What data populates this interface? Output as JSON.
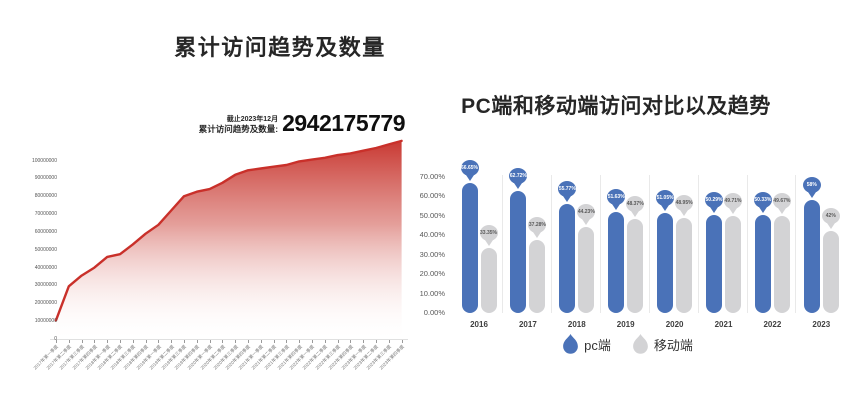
{
  "page": {
    "background": "#ffffff"
  },
  "chart_data": [
    {
      "type": "area",
      "title": "累计访问趋势及数量",
      "annotation": {
        "caption": "截止2023年12月",
        "label": "累计访问趋势及数量:",
        "total": "2942175779"
      },
      "x": [
        "2017年第一季度",
        "2017年第二季度",
        "2017年第三季度",
        "2017年第四季度",
        "2018年第一季度",
        "2018年第二季度",
        "2018年第三季度",
        "2018年第四季度",
        "2019年第一季度",
        "2019年第二季度",
        "2019年第三季度",
        "2019年第四季度",
        "2020年第一季度",
        "2020年第二季度",
        "2020年第三季度",
        "2020年第四季度",
        "2021年第一季度",
        "2021年第二季度",
        "2021年第三季度",
        "2021年第四季度",
        "2022年第一季度",
        "2022年第二季度",
        "2022年第三季度",
        "2022年第四季度",
        "2023年第一季度",
        "2023年第二季度",
        "2023年第三季度",
        "2023年第四季度"
      ],
      "values": [
        10500000,
        29500000,
        35500000,
        40000000,
        46000000,
        47500000,
        53000000,
        59000000,
        64000000,
        72000000,
        80000000,
        82500000,
        84000000,
        87500000,
        92000000,
        94500000,
        95500000,
        96500000,
        97500000,
        99500000,
        100500000,
        101500000,
        103000000,
        104000000,
        105500000,
        107000000,
        109000000,
        111000000
      ],
      "y_ticks": [
        "100000000",
        "90000000",
        "80000000",
        "70000000",
        "60000000",
        "50000000",
        "40000000",
        "30000000",
        "20000000",
        "10000000",
        "0"
      ],
      "ylim": [
        0,
        111000000
      ],
      "grid": false,
      "line_color": "#C9302A",
      "fill_gradient_top": "#C62F28",
      "fill_gradient_bottom": "#FFFFFF"
    },
    {
      "type": "bar",
      "title": "PC端和移动端访问对比以及趋势",
      "categories": [
        "2016",
        "2017",
        "2018",
        "2019",
        "2020",
        "2021",
        "2022",
        "2023"
      ],
      "series": [
        {
          "name": "pc端",
          "color": "#4A72B8",
          "values": [
            66.65,
            62.72,
            55.77,
            51.63,
            51.05,
            50.29,
            50.33,
            58
          ],
          "labels": [
            "66.65%",
            "62.72%",
            "55.77%",
            "51.63%",
            "51.05%",
            "50.29%",
            "50.33%",
            "58%"
          ]
        },
        {
          "name": "移动端",
          "color": "#D3D3D5",
          "values": [
            33.35,
            37.28,
            44.23,
            48.37,
            48.95,
            49.71,
            49.67,
            42
          ],
          "labels": [
            "33.35%",
            "37.28%",
            "44.23%",
            "48.37%",
            "48.95%",
            "49.71%",
            "49.67%",
            "42%"
          ]
        }
      ],
      "y_ticks": [
        "70.00%",
        "60.00%",
        "50.00%",
        "40.00%",
        "30.00%",
        "20.00%",
        "10.00%",
        "0.00%"
      ],
      "ylim": [
        0,
        70
      ],
      "grid": false,
      "legend_position": "bottom"
    }
  ]
}
